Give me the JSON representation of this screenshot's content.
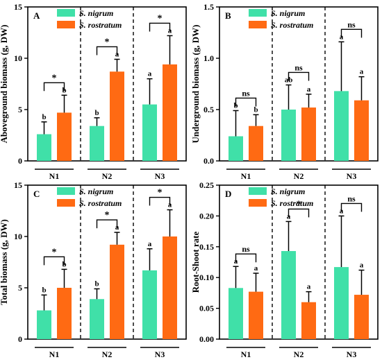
{
  "colors": {
    "S_nigrum": "#40e0a8",
    "S_rostratum": "#ff6a13"
  },
  "legend": [
    "S. nigrum",
    "S. rostratum"
  ],
  "chart_data": [
    {
      "panel": "A",
      "type": "bar",
      "ylabel": "Aboveground biomass (g, DW)",
      "ylim": [
        0,
        15
      ],
      "yticks": [
        "0",
        "5",
        "10",
        "15"
      ],
      "categories": [
        "N1",
        "N2",
        "N3"
      ],
      "series": [
        {
          "name": "S. nigrum",
          "values": [
            2.6,
            3.4,
            5.5
          ],
          "errors": [
            1.2,
            0.8,
            2.5
          ],
          "letters": [
            "b",
            "b",
            "a"
          ]
        },
        {
          "name": "S. rostratum",
          "values": [
            4.7,
            8.7,
            9.4
          ],
          "errors": [
            1.7,
            1.2,
            2.8
          ],
          "letters": [
            "b",
            "a",
            "a"
          ]
        }
      ],
      "comparisons": [
        "*",
        "*",
        "*"
      ]
    },
    {
      "panel": "B",
      "type": "bar",
      "ylabel": "Underground biomass (g, DW)",
      "ylim": [
        0,
        1.5
      ],
      "yticks": [
        "0.0",
        "0.5",
        "1.0",
        "1.5"
      ],
      "categories": [
        "N1",
        "N2",
        "N3"
      ],
      "series": [
        {
          "name": "S. nigrum",
          "values": [
            0.24,
            0.5,
            0.68
          ],
          "errors": [
            0.25,
            0.24,
            0.48
          ],
          "letters": [
            "b",
            "ab",
            "a"
          ]
        },
        {
          "name": "S. rostratum",
          "values": [
            0.34,
            0.52,
            0.59
          ],
          "errors": [
            0.11,
            0.13,
            0.23
          ],
          "letters": [
            "b",
            "a",
            "a"
          ]
        }
      ],
      "comparisons": [
        "ns",
        "ns",
        "ns"
      ]
    },
    {
      "panel": "C",
      "type": "bar",
      "ylabel": "Total biomass (g, DW)",
      "ylim": [
        0,
        15
      ],
      "yticks": [
        "0",
        "5",
        "10",
        "15"
      ],
      "categories": [
        "N1",
        "N2",
        "N3"
      ],
      "series": [
        {
          "name": "S. nigrum",
          "values": [
            2.8,
            3.9,
            6.7
          ],
          "errors": [
            1.5,
            1.0,
            2.1
          ],
          "letters": [
            "b",
            "b",
            "a"
          ]
        },
        {
          "name": "S. rostratum",
          "values": [
            5.0,
            9.2,
            10.0
          ],
          "errors": [
            1.8,
            1.2,
            2.6
          ],
          "letters": [
            "b",
            "a",
            "a"
          ]
        }
      ],
      "comparisons": [
        "*",
        "*",
        "*"
      ]
    },
    {
      "panel": "D",
      "type": "bar",
      "ylabel": "Root-Shoot rate",
      "ylim": [
        0,
        0.25
      ],
      "yticks": [
        "0.00",
        "0.05",
        "0.10",
        "0.15",
        "0.20",
        "0.25"
      ],
      "categories": [
        "N1",
        "N2",
        "N3"
      ],
      "series": [
        {
          "name": "S. nigrum",
          "values": [
            0.083,
            0.143,
            0.117
          ],
          "errors": [
            0.035,
            0.048,
            0.083
          ],
          "letters": [
            "a",
            "a",
            "a"
          ]
        },
        {
          "name": "S. rostratum",
          "values": [
            0.077,
            0.06,
            0.072
          ],
          "errors": [
            0.03,
            0.017,
            0.04
          ],
          "letters": [
            "a",
            "a",
            "a"
          ]
        }
      ],
      "comparisons": [
        "ns",
        "*",
        "ns"
      ]
    }
  ]
}
